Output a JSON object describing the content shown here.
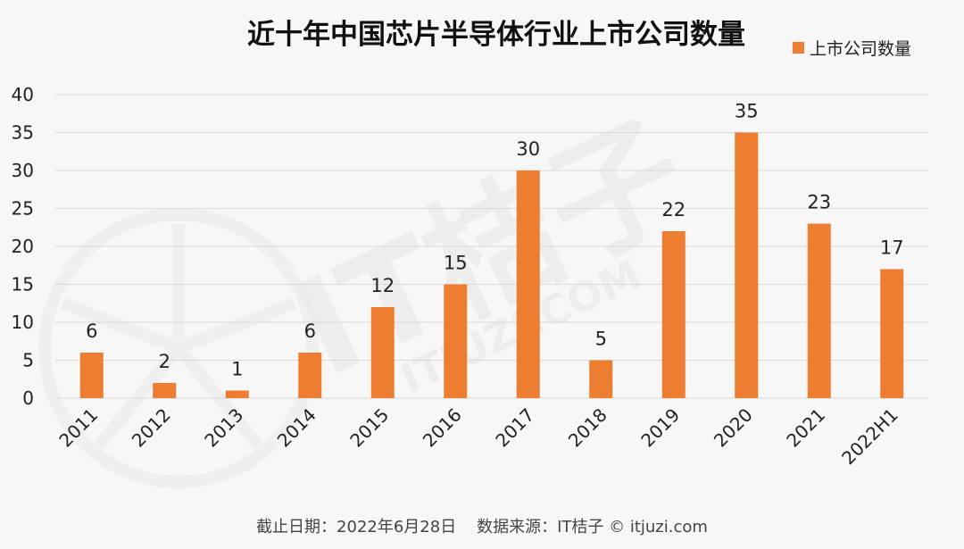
{
  "chart_data": {
    "type": "bar",
    "title": "近十年中国芯片半导体行业上市公司数量",
    "categories": [
      "2011",
      "2012",
      "2013",
      "2014",
      "2015",
      "2016",
      "2017",
      "2018",
      "2019",
      "2020",
      "2021",
      "2022H1"
    ],
    "series": [
      {
        "name": "上市公司数量",
        "values": [
          6,
          2,
          1,
          6,
          12,
          15,
          30,
          5,
          22,
          35,
          23,
          17
        ],
        "color": "#ED7D31"
      }
    ],
    "ylim": [
      0,
      40
    ],
    "yticks": [
      0,
      5,
      10,
      15,
      20,
      25,
      30,
      35,
      40
    ],
    "grid": true,
    "legend_position": "top-right",
    "data_labels": true
  },
  "watermark": {
    "brand_text": "IT桔子",
    "url_text": "ITJUZI.COM"
  },
  "footer": {
    "text": "截止日期：2022年6月28日    数据来源：IT桔子 © itjuzi.com"
  }
}
